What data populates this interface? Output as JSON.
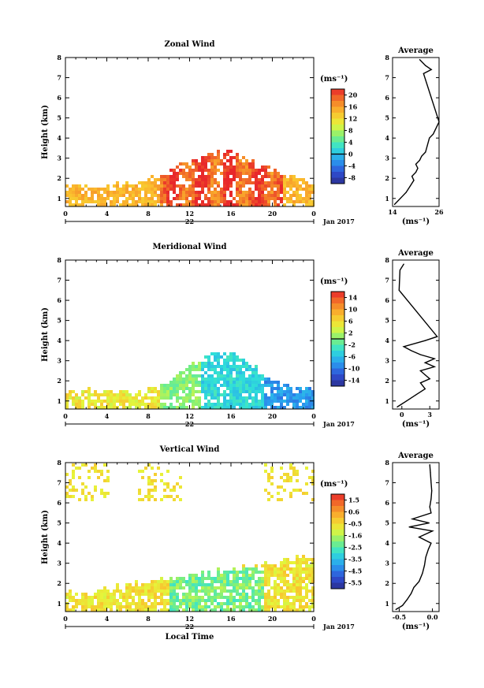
{
  "chart_data": [
    {
      "type": "heatmap",
      "title": "Zonal Wind",
      "ylabel": "Height (km)",
      "xlim": [
        0,
        24
      ],
      "ylim": [
        0.6,
        8
      ],
      "x_ticks": [
        "0",
        "4",
        "8",
        "12",
        "16",
        "20",
        "0"
      ],
      "y_ticks": [
        "1",
        "2",
        "3",
        "4",
        "5",
        "6",
        "7",
        "8"
      ],
      "date_label": "22",
      "date_suffix": "Jan 2017",
      "colorbar": {
        "unit": "(ms⁻¹)",
        "min": -10,
        "max": 22,
        "ticks": [
          "20",
          "16",
          "12",
          "8",
          "4",
          "0",
          "-4",
          "-8"
        ],
        "contour_level": 0
      },
      "profile": {
        "title": "Average",
        "xlabel": "(ms⁻¹)",
        "xlim": [
          14,
          26
        ],
        "x_ticks": [
          "14",
          "26"
        ],
        "heights": [
          0.7,
          1.0,
          1.3,
          1.6,
          1.9,
          2.1,
          2.3,
          2.5,
          2.7,
          2.9,
          3.1,
          3.3,
          4.0,
          4.2,
          4.6,
          4.8,
          7.2,
          7.4,
          7.6,
          7.9
        ],
        "values": [
          14.5,
          16.0,
          17.5,
          18.5,
          19.5,
          19.0,
          20.0,
          20.5,
          20.0,
          21.0,
          21.5,
          22.5,
          23.5,
          24.5,
          25.5,
          26.0,
          22.0,
          24.0,
          22.5,
          21.0
        ]
      }
    },
    {
      "type": "heatmap",
      "title": "Meridional Wind",
      "ylabel": "Height (km)",
      "xlim": [
        0,
        24
      ],
      "ylim": [
        0.6,
        8
      ],
      "x_ticks": [
        "0",
        "4",
        "8",
        "12",
        "16",
        "20",
        "0"
      ],
      "y_ticks": [
        "1",
        "2",
        "3",
        "4",
        "5",
        "6",
        "7",
        "8"
      ],
      "date_label": "22",
      "date_suffix": "Jan 2017",
      "colorbar": {
        "unit": "(ms⁻¹)",
        "min": -16,
        "max": 16,
        "ticks": [
          "14",
          "10",
          "6",
          "2",
          "-2",
          "-6",
          "-10",
          "-14"
        ],
        "contour_level": 0
      },
      "profile": {
        "title": "Average",
        "xlabel": "(ms⁻¹)",
        "xlim": [
          -1,
          4
        ],
        "x_ticks": [
          "0",
          "3"
        ],
        "heights": [
          0.7,
          1.0,
          1.3,
          1.6,
          1.9,
          2.1,
          2.3,
          2.5,
          2.7,
          2.9,
          3.1,
          3.3,
          3.5,
          3.7,
          4.0,
          4.2,
          6.5,
          7.5,
          7.8
        ],
        "values": [
          -0.5,
          0.5,
          1.5,
          2.5,
          2.0,
          3.0,
          2.5,
          2.0,
          3.5,
          2.5,
          3.5,
          2.0,
          1.0,
          0.2,
          2.5,
          3.8,
          -0.3,
          -0.2,
          0.2
        ]
      }
    },
    {
      "type": "heatmap",
      "title": "Vertical Wind",
      "ylabel": "Height (km)",
      "xlabel": "Local Time",
      "xlim": [
        0,
        24
      ],
      "ylim": [
        0.6,
        8
      ],
      "x_ticks": [
        "0",
        "4",
        "8",
        "12",
        "16",
        "20",
        "0"
      ],
      "y_ticks": [
        "1",
        "2",
        "3",
        "4",
        "5",
        "6",
        "7",
        "8"
      ],
      "date_label": "22",
      "date_suffix": "Jan 2017",
      "colorbar": {
        "unit": "(ms⁻¹)",
        "min": -6.0,
        "max": 2.0,
        "ticks": [
          "1.5",
          "0.6",
          "-0.5",
          "-1.6",
          "-2.5",
          "-3.5",
          "-4.5",
          "-5.5"
        ],
        "contour_level": null
      },
      "profile": {
        "title": "Average",
        "xlabel": "(ms⁻¹)",
        "xlim": [
          -0.6,
          0.1
        ],
        "x_ticks": [
          "-0.5",
          "0.0"
        ],
        "heights": [
          0.7,
          0.9,
          1.2,
          1.5,
          1.8,
          2.1,
          2.5,
          2.9,
          3.3,
          3.7,
          4.0,
          4.3,
          4.6,
          4.8,
          5.0,
          5.2,
          5.5,
          5.8,
          6.2,
          6.6,
          7.0,
          7.5,
          7.9
        ],
        "values": [
          -0.55,
          -0.45,
          -0.38,
          -0.32,
          -0.28,
          -0.2,
          -0.15,
          -0.12,
          -0.1,
          -0.06,
          -0.02,
          -0.2,
          0.0,
          -0.35,
          -0.05,
          -0.3,
          -0.02,
          -0.04,
          -0.02,
          -0.01,
          -0.02,
          -0.03,
          -0.04
        ]
      }
    }
  ]
}
